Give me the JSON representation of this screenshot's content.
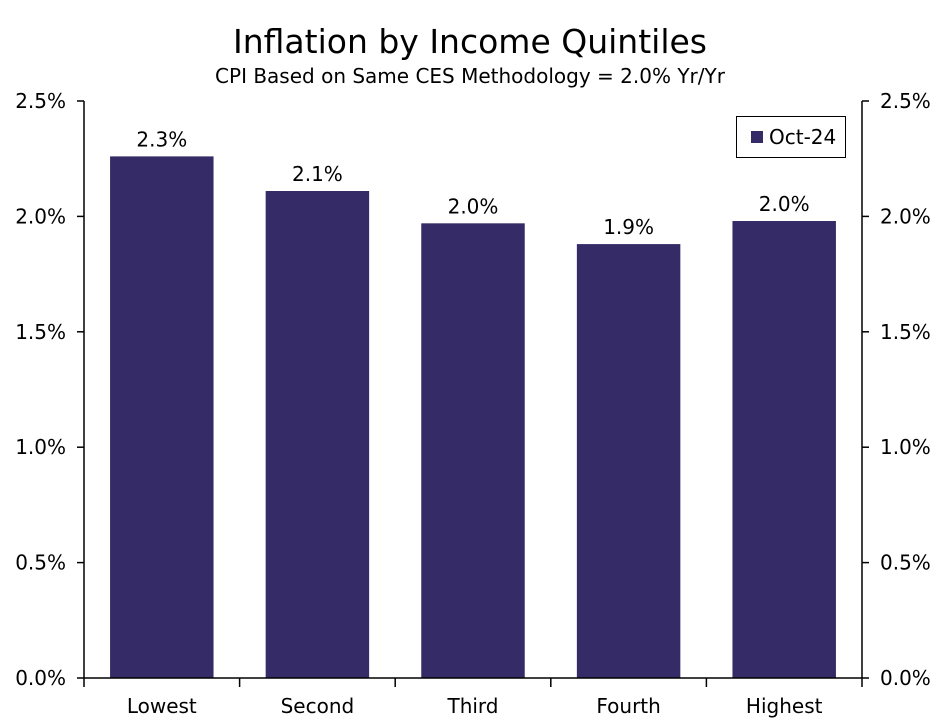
{
  "chart_data": {
    "type": "bar",
    "title": "Inflation by Income Quintiles",
    "subtitle": "CPI Based on Same CES Methodology = 2.0% Yr/Yr",
    "categories": [
      "Lowest",
      "Second",
      "Third",
      "Fourth",
      "Highest"
    ],
    "series": [
      {
        "name": "Oct-24",
        "values": [
          2.26,
          2.11,
          1.97,
          1.88,
          1.98
        ],
        "data_labels": [
          "2.3%",
          "2.1%",
          "2.0%",
          "1.9%",
          "2.0%"
        ],
        "color": "#352b66"
      }
    ],
    "ylim": [
      0,
      2.5
    ],
    "y_ticks": [
      0,
      0.5,
      1.0,
      1.5,
      2.0,
      2.5
    ],
    "y_tick_labels": [
      "0.0%",
      "0.5%",
      "1.0%",
      "1.5%",
      "2.0%",
      "2.5%"
    ],
    "secondary_y_axis": true,
    "grid": false,
    "legend_position": "top-right"
  }
}
